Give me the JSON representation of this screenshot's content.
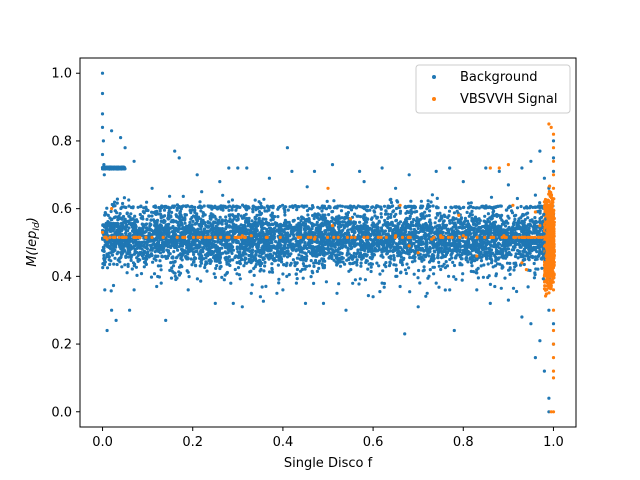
{
  "chart_data": {
    "type": "scatter",
    "title": "",
    "xlabel": "Single Disco f",
    "ylabel": "M(lep_Id)",
    "ylabel_main": "M(lep",
    "ylabel_sub": "Id",
    "ylabel_close": ")",
    "xlim": [
      -0.05,
      1.05
    ],
    "ylim": [
      -0.045,
      1.045
    ],
    "xticks": [
      0.0,
      0.2,
      0.4,
      0.6,
      0.8,
      1.0
    ],
    "xtick_labels": [
      "0.0",
      "0.2",
      "0.4",
      "0.6",
      "0.8",
      "1.0"
    ],
    "yticks": [
      0.0,
      0.2,
      0.4,
      0.6,
      0.8,
      1.0
    ],
    "ytick_labels": [
      "0.0",
      "0.2",
      "0.4",
      "0.6",
      "0.8",
      "1.0"
    ],
    "grid": false,
    "legend_position": "top-right",
    "series": [
      {
        "name": "Background",
        "color": "#1f77b4",
        "points": [
          [
            0.0,
            1.0
          ],
          [
            0.0,
            0.94
          ],
          [
            0.0,
            0.88
          ],
          [
            0.0,
            0.84
          ],
          [
            0.002,
            0.8
          ],
          [
            0.0,
            0.76
          ],
          [
            0.003,
            0.73
          ],
          [
            0.004,
            0.7
          ],
          [
            0.01,
            0.24
          ],
          [
            0.02,
            0.3
          ],
          [
            0.03,
            0.27
          ],
          [
            0.005,
            0.36
          ],
          [
            0.06,
            0.3
          ],
          [
            0.14,
            0.27
          ],
          [
            0.02,
            0.83
          ],
          [
            0.04,
            0.81
          ],
          [
            0.05,
            0.78
          ],
          [
            0.07,
            0.74
          ],
          [
            0.16,
            0.77
          ],
          [
            0.17,
            0.75
          ],
          [
            0.41,
            0.78
          ],
          [
            0.42,
            0.71
          ],
          [
            0.3,
            0.72
          ],
          [
            0.32,
            0.72
          ],
          [
            0.28,
            0.72
          ],
          [
            0.21,
            0.7
          ],
          [
            0.25,
            0.32
          ],
          [
            0.29,
            0.32
          ],
          [
            0.31,
            0.31
          ],
          [
            0.35,
            0.34
          ],
          [
            0.45,
            0.32
          ],
          [
            0.49,
            0.32
          ],
          [
            0.54,
            0.3
          ],
          [
            0.67,
            0.23
          ],
          [
            0.78,
            0.24
          ],
          [
            0.6,
            0.34
          ],
          [
            0.7,
            0.31
          ],
          [
            0.86,
            0.32
          ],
          [
            0.9,
            0.33
          ],
          [
            0.93,
            0.28
          ],
          [
            0.95,
            0.26
          ],
          [
            0.97,
            0.21
          ],
          [
            0.96,
            0.16
          ],
          [
            0.99,
            0.04
          ],
          [
            0.99,
            0.0
          ],
          [
            0.98,
            0.12
          ],
          [
            0.97,
            0.77
          ],
          [
            0.95,
            0.74
          ],
          [
            0.93,
            0.72
          ],
          [
            0.88,
            0.71
          ],
          [
            0.85,
            0.72
          ],
          [
            0.77,
            0.72
          ],
          [
            0.74,
            0.71
          ],
          [
            0.68,
            0.7
          ],
          [
            0.62,
            0.72
          ],
          [
            0.51,
            0.73
          ],
          [
            0.47,
            0.71
          ],
          [
            0.57,
            0.71
          ],
          [
            0.65,
            0.66
          ],
          [
            0.58,
            0.68
          ],
          [
            0.37,
            0.69
          ],
          [
            0.26,
            0.68
          ],
          [
            0.11,
            0.66
          ],
          [
            0.22,
            0.65
          ],
          [
            0.8,
            0.68
          ],
          [
            0.9,
            0.67
          ],
          [
            0.98,
            0.69
          ],
          [
            1.0,
            0.75
          ],
          [
            1.0,
            0.8
          ],
          [
            1.0,
            0.71
          ],
          [
            0.99,
            0.66
          ],
          [
            0.96,
            0.64
          ],
          [
            0.92,
            0.63
          ],
          [
            0.83,
            0.36
          ],
          [
            0.77,
            0.36
          ],
          [
            0.72,
            0.35
          ],
          [
            0.66,
            0.37
          ],
          [
            0.52,
            0.35
          ],
          [
            0.4,
            0.36
          ],
          [
            0.33,
            0.35
          ],
          [
            0.19,
            0.36
          ],
          [
            0.12,
            0.37
          ],
          [
            0.07,
            0.36
          ],
          [
            0.13,
            0.38
          ],
          [
            0.27,
            0.39
          ],
          [
            0.43,
            0.38
          ],
          [
            0.62,
            0.38
          ],
          [
            0.74,
            0.38
          ],
          [
            0.87,
            0.37
          ],
          [
            0.99,
            0.3
          ],
          [
            1.0,
            0.2
          ],
          [
            1.0,
            0.26
          ]
        ]
      },
      {
        "name": "VBSVVH Signal",
        "color": "#ff7f0e",
        "points": [
          [
            0.0,
            0.53
          ],
          [
            0.01,
            0.51
          ],
          [
            0.02,
            0.6
          ],
          [
            0.08,
            0.515
          ],
          [
            0.3,
            0.515
          ],
          [
            0.31,
            0.52
          ],
          [
            0.33,
            0.52
          ],
          [
            0.47,
            0.51
          ],
          [
            0.5,
            0.66
          ],
          [
            0.51,
            0.55
          ],
          [
            0.55,
            0.57
          ],
          [
            0.65,
            0.52
          ],
          [
            0.66,
            0.61
          ],
          [
            0.68,
            0.49
          ],
          [
            0.7,
            0.47
          ],
          [
            0.73,
            0.51
          ],
          [
            0.75,
            0.52
          ],
          [
            0.79,
            0.58
          ],
          [
            0.8,
            0.52
          ],
          [
            0.83,
            0.46
          ],
          [
            0.86,
            0.72
          ],
          [
            0.88,
            0.72
          ],
          [
            0.89,
            0.52
          ],
          [
            0.9,
            0.73
          ],
          [
            0.91,
            0.61
          ],
          [
            0.93,
            0.44
          ],
          [
            0.94,
            0.42
          ],
          [
            0.96,
            0.59
          ],
          [
            0.97,
            0.55
          ],
          [
            0.98,
            0.62
          ],
          [
            0.99,
            0.85
          ],
          [
            0.995,
            0.84
          ],
          [
            1.0,
            0.82
          ],
          [
            1.0,
            0.78
          ],
          [
            1.0,
            0.74
          ],
          [
            1.0,
            0.7
          ],
          [
            1.0,
            0.66
          ],
          [
            1.0,
            0.46
          ],
          [
            1.0,
            0.36
          ],
          [
            1.0,
            0.3
          ],
          [
            1.0,
            0.24
          ],
          [
            1.0,
            0.2
          ],
          [
            1.0,
            0.16
          ],
          [
            1.0,
            0.12
          ],
          [
            0.995,
            0.0
          ],
          [
            1.0,
            0.0
          ],
          [
            1.0,
            0.1
          ],
          [
            0.99,
            0.4
          ]
        ],
        "dense_bands": [
          {
            "x": [
              0.0,
              1.0
            ],
            "y": 0.515
          }
        ]
      }
    ],
    "dense_regions": [
      {
        "series": 0,
        "x": [
          0.0,
          1.0
        ],
        "y_center": 0.515,
        "y_spread": 0.1
      },
      {
        "series": 0,
        "x": [
          0.04,
          1.0
        ],
        "y_center": 0.605,
        "y_spread": 0.0
      },
      {
        "series": 0,
        "x": [
          0.0,
          0.05
        ],
        "y_center": 0.72,
        "y_spread": 0.0
      },
      {
        "series": 1,
        "x": [
          0.98,
          1.0
        ],
        "y_center": 0.5,
        "y_spread": 0.16
      }
    ]
  }
}
